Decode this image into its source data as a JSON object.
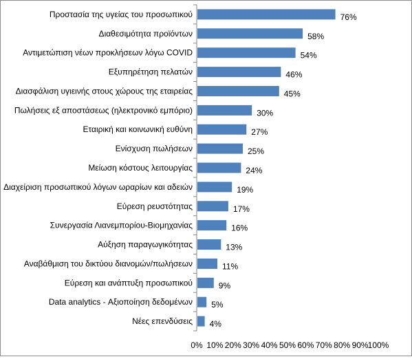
{
  "chart_data": {
    "type": "bar",
    "orientation": "horizontal",
    "categories": [
      "Προστασία της υγείας του προσωπικού",
      "Διαθεσιμότητα προϊόντων",
      "Αντιμετώπιση νέων προκλήσεων λόγω COVID",
      "Εξυπηρέτηση πελατών",
      "Διασφάλιση υγιεινής στους χώρους της εταιρείας",
      "Πωλήσεις εξ αποστάσεως (ηλεκτρονικό εμπόριο)",
      "Εταιρική και κοινωνική ευθύνη",
      "Ενίσχυση πωλήσεων",
      "Μείωση κόστους λειτουργίας",
      "Διαχείριση προσωπικού λόγων ωραρίων και αδειών",
      "Εύρεση ρευστότητας",
      "Συνεργασία Λιανεμπορίου-Βιομηχανίας",
      "Αύξηση παραγωγικότητας",
      "Αναβάθμιση του δικτύου διανομών/πωλήσεων",
      "Εύρεση και ανάπτυξη προσωπικού",
      "Data analytics - Αξιοποίηση δεδομένων",
      "Νέες επενδύσεις"
    ],
    "values": [
      76,
      58,
      54,
      46,
      45,
      30,
      27,
      25,
      24,
      19,
      17,
      16,
      13,
      11,
      9,
      5,
      4
    ],
    "data_labels": [
      "76%",
      "58%",
      "54%",
      "46%",
      "45%",
      "30%",
      "27%",
      "25%",
      "24%",
      "19%",
      "17%",
      "16%",
      "13%",
      "11%",
      "9%",
      "5%",
      "4%"
    ],
    "x_ticks": [
      "0%",
      "10%",
      "20%",
      "30%",
      "40%",
      "50%",
      "60%",
      "70%",
      "80%",
      "90%",
      "100%"
    ],
    "xlim": [
      0,
      100
    ],
    "bar_color": "#4f81bd",
    "grid": false,
    "legend": "none"
  }
}
